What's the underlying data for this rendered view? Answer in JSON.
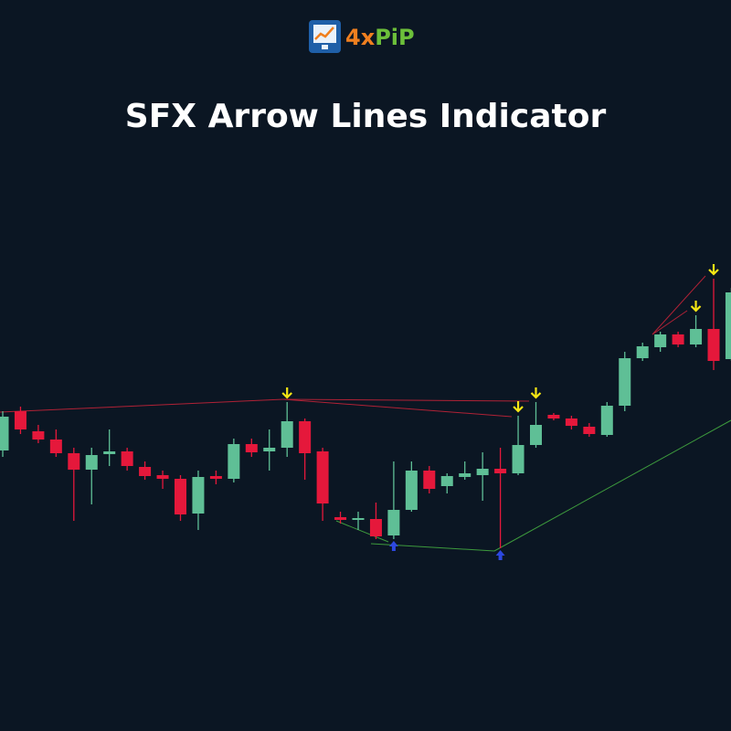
{
  "logo_text": [
    "4x",
    "PiP"
  ],
  "chart_data": {
    "type": "candlestick",
    "title": "SFX Arrow Lines Indicator",
    "up_color": "#5fbf96",
    "down_color": "#e5183b",
    "ylim": [
      100,
      600
    ],
    "open": [
      307,
      350,
      328,
      319,
      304,
      286,
      303,
      306,
      289,
      280,
      276,
      238,
      279,
      276,
      314,
      306,
      310,
      339,
      306,
      234,
      231,
      232,
      214,
      242,
      285,
      268,
      278,
      280,
      287,
      282,
      313,
      346,
      342,
      333,
      324,
      356,
      408,
      420,
      434,
      423,
      440,
      407
    ],
    "high": [
      350,
      355,
      335,
      330,
      310,
      310,
      330,
      310,
      295,
      285,
      280,
      285,
      285,
      320,
      320,
      330,
      360,
      342,
      310,
      240,
      240,
      250,
      295,
      295,
      290,
      282,
      295,
      305,
      310,
      345,
      360,
      348,
      345,
      337,
      360,
      415,
      425,
      437,
      437,
      455,
      495,
      485
    ],
    "low": [
      300,
      325,
      315,
      300,
      230,
      248,
      290,
      285,
      275,
      265,
      230,
      220,
      270,
      272,
      300,
      285,
      300,
      275,
      230,
      227,
      220,
      210,
      210,
      240,
      260,
      260,
      275,
      252,
      200,
      280,
      310,
      340,
      330,
      322,
      322,
      350,
      405,
      415,
      420,
      420,
      395,
      405
    ],
    "close": [
      344,
      330,
      319,
      304,
      286,
      302,
      306,
      290,
      279,
      276,
      237,
      278,
      276,
      314,
      305,
      310,
      339,
      304,
      249,
      231,
      233,
      213,
      242,
      285,
      265,
      279,
      282,
      287,
      282,
      313,
      335,
      342,
      334,
      325,
      356,
      408,
      421,
      434,
      423,
      440,
      405,
      480
    ],
    "signals": [
      {
        "candle": 16,
        "type": "sell"
      },
      {
        "candle": 22,
        "type": "buy"
      },
      {
        "candle": 28,
        "type": "buy"
      },
      {
        "candle": 29,
        "type": "sell"
      },
      {
        "candle": 30,
        "type": "sell"
      },
      {
        "candle": 39,
        "type": "sell"
      },
      {
        "candle": 40,
        "type": "sell"
      }
    ]
  }
}
